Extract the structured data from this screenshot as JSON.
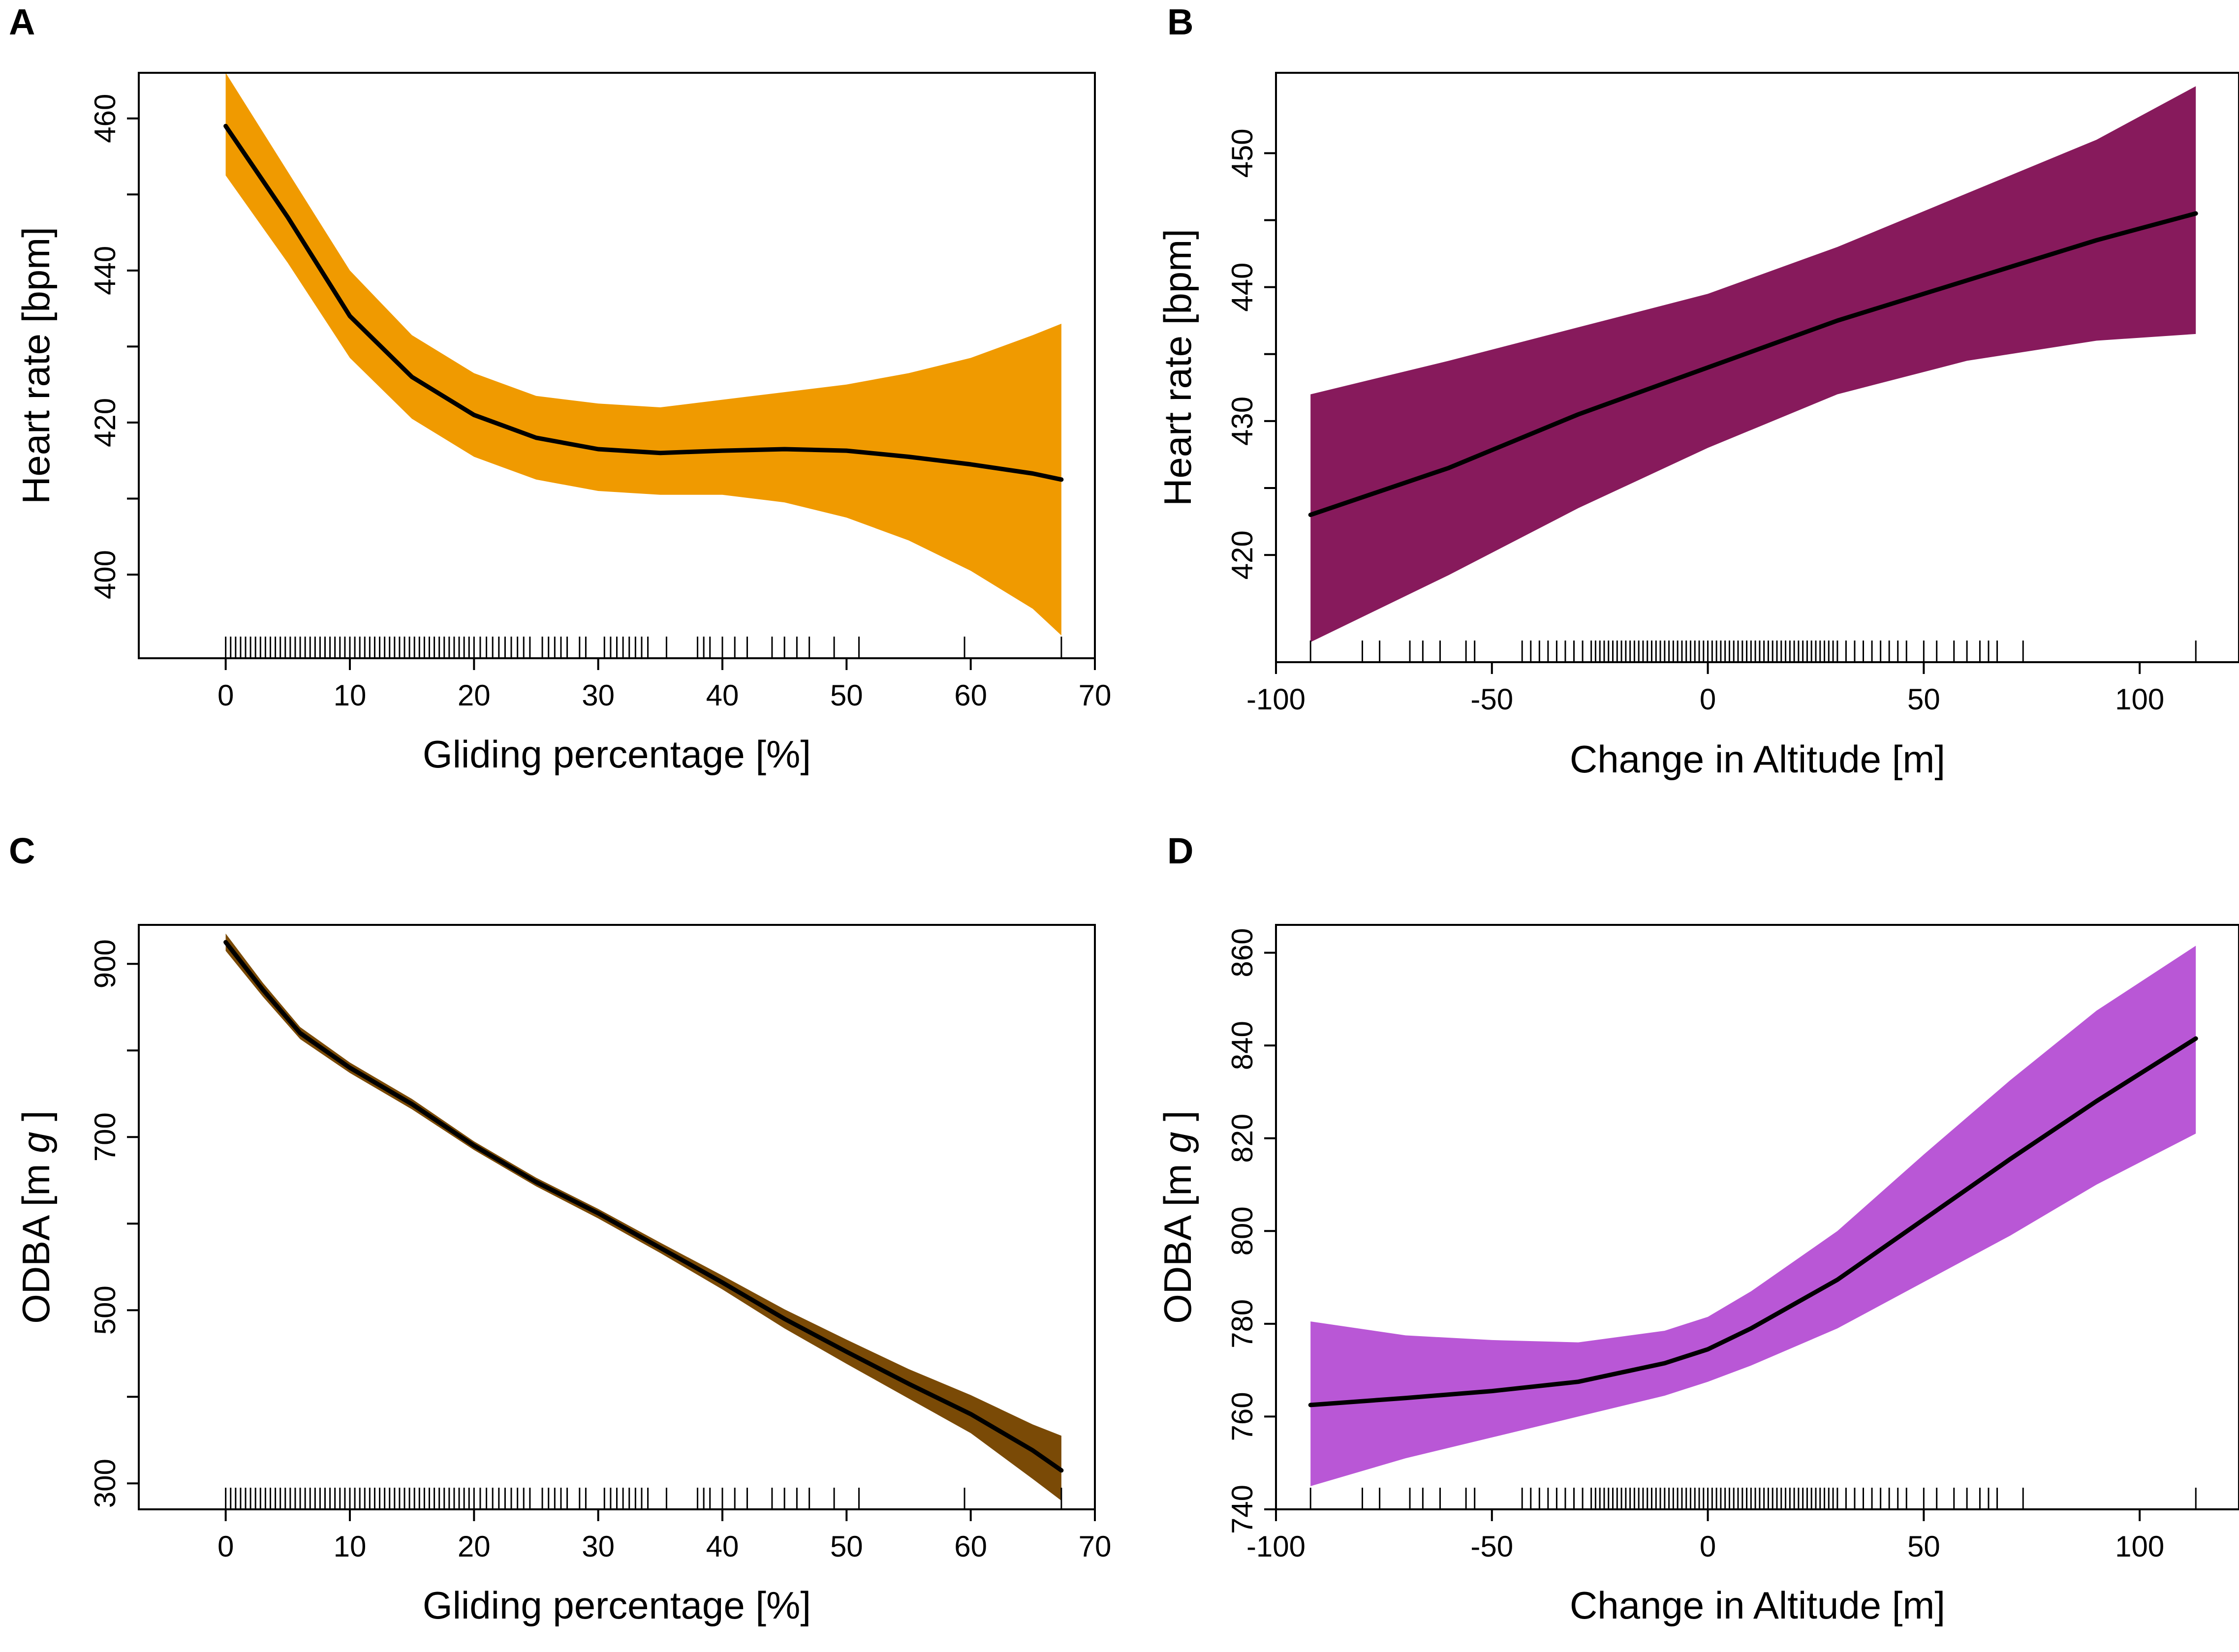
{
  "colors": {
    "panel_a_band": "#F09A00",
    "panel_b_band": "#871A5C",
    "panel_c_band": "#7A4A06",
    "panel_d_band": "#B957D6",
    "line": "#000000"
  },
  "chart_data": [
    {
      "panel": "A",
      "type": "line",
      "title": "",
      "xlabel": "Gliding percentage [%]",
      "ylabel": "Heart rate [bpm]",
      "xlim": [
        -7,
        70
      ],
      "ylim": [
        389,
        466
      ],
      "x_ticks": [
        0,
        10,
        20,
        30,
        40,
        50,
        60,
        70
      ],
      "x_tick_labels": [
        "0",
        "10",
        "20",
        "30",
        "40",
        "50",
        "60",
        "70"
      ],
      "y_ticks": [
        400,
        410,
        420,
        430,
        440,
        450,
        460
      ],
      "y_tick_labels": [
        "400",
        "",
        "420",
        "",
        "440",
        "",
        "460"
      ],
      "series": [
        {
          "name": "fit",
          "x": [
            0,
            5,
            10,
            15,
            20,
            25,
            30,
            35,
            40,
            45,
            50,
            55,
            60,
            65,
            67.3
          ],
          "y": [
            459,
            447,
            434,
            426,
            421,
            418,
            416.5,
            416,
            416.3,
            416.5,
            416.3,
            415.5,
            414.5,
            413.3,
            412.5
          ],
          "lower": [
            452.5,
            441,
            428.5,
            420.5,
            415.5,
            412.5,
            411,
            410.5,
            410.5,
            409.5,
            407.5,
            404.5,
            400.5,
            395.5,
            392
          ],
          "upper": [
            466,
            453,
            440,
            431.5,
            426.5,
            423.5,
            422.5,
            422,
            423,
            424,
            425,
            426.5,
            428.5,
            431.5,
            433
          ]
        }
      ],
      "rug": [
        0,
        0.4,
        0.8,
        1.2,
        1.6,
        2,
        2.4,
        2.8,
        3.2,
        3.6,
        4,
        4.4,
        4.8,
        5.2,
        5.6,
        6,
        6.4,
        6.8,
        7.2,
        7.6,
        8,
        8.4,
        8.8,
        9.2,
        9.6,
        10,
        10.4,
        10.8,
        11.2,
        11.6,
        12,
        12.4,
        12.8,
        13.2,
        13.6,
        14,
        14.4,
        14.8,
        15.2,
        15.6,
        16,
        16.4,
        16.8,
        17.2,
        17.6,
        18,
        18.4,
        18.8,
        19.2,
        19.6,
        20,
        20.5,
        21,
        21.5,
        22,
        22.5,
        23,
        23.5,
        24,
        24.5,
        25.5,
        26,
        26.5,
        27,
        27.5,
        28.5,
        29,
        30.5,
        31,
        31.5,
        32,
        32.5,
        33,
        33.5,
        34,
        35.5,
        38,
        38.5,
        39,
        40,
        41,
        42,
        44,
        45,
        46,
        47,
        49,
        51,
        59.5,
        67.3
      ]
    },
    {
      "panel": "B",
      "type": "line",
      "title": "",
      "xlabel": "Change in Altitude [m]",
      "ylabel": "Heart rate [bpm]",
      "xlim": [
        -100,
        123
      ],
      "ylim": [
        412,
        456
      ],
      "x_ticks": [
        -100,
        -50,
        0,
        50,
        100
      ],
      "x_tick_labels": [
        "-100",
        "-50",
        "0",
        "50",
        "100"
      ],
      "y_ticks": [
        420,
        425,
        430,
        435,
        440,
        445,
        450
      ],
      "y_tick_labels": [
        "420",
        "",
        "430",
        "",
        "440",
        "",
        "450"
      ],
      "series": [
        {
          "name": "fit",
          "x": [
            -92,
            -60,
            -30,
            0,
            30,
            60,
            90,
            113
          ],
          "y": [
            423,
            426.5,
            430.5,
            434,
            437.5,
            440.5,
            443.5,
            445.5
          ],
          "lower": [
            413.5,
            418.5,
            423.5,
            428,
            432,
            434.5,
            436,
            436.5
          ],
          "upper": [
            432,
            434.5,
            437,
            439.5,
            443,
            447,
            451,
            455
          ]
        }
      ],
      "rug": [
        -92,
        -80,
        -76,
        -69,
        -66,
        -62,
        -56,
        -54,
        -43,
        -41,
        -39,
        -37,
        -35,
        -33,
        -31,
        -29,
        -27,
        -26,
        -25,
        -24,
        -23,
        -22,
        -21,
        -20,
        -19,
        -18,
        -17,
        -16,
        -15,
        -14,
        -13,
        -12,
        -11,
        -10,
        -9,
        -8,
        -7,
        -6,
        -5,
        -4,
        -3,
        -2,
        -1,
        0,
        1,
        2,
        3,
        4,
        5,
        6,
        7,
        8,
        9,
        10,
        11,
        12,
        13,
        14,
        15,
        16,
        17,
        18,
        19,
        20,
        21,
        22,
        23,
        24,
        25,
        26,
        27,
        28,
        29,
        30,
        32,
        34,
        36,
        38,
        40,
        42,
        44,
        46,
        50,
        53,
        57,
        60,
        63,
        65,
        67,
        73,
        113
      ]
    },
    {
      "panel": "C",
      "type": "line",
      "title": "",
      "xlabel": "Gliding percentage [%]",
      "ylabel": "ODBA [m g ]",
      "xlim": [
        -7,
        70
      ],
      "ylim": [
        270,
        945
      ],
      "x_ticks": [
        0,
        10,
        20,
        30,
        40,
        50,
        60,
        70
      ],
      "x_tick_labels": [
        "0",
        "10",
        "20",
        "30",
        "40",
        "50",
        "60",
        "70"
      ],
      "y_ticks": [
        300,
        400,
        500,
        600,
        700,
        800,
        900
      ],
      "y_tick_labels": [
        "300",
        "",
        "500",
        "",
        "700",
        "",
        "900"
      ],
      "series": [
        {
          "name": "fit",
          "x": [
            0,
            3,
            6,
            10,
            15,
            20,
            25,
            30,
            35,
            40,
            45,
            50,
            55,
            60,
            65,
            67.3
          ],
          "y": [
            925,
            870,
            820,
            780,
            738,
            690,
            648,
            612,
            572,
            532,
            490,
            452,
            415,
            380,
            338,
            315
          ],
          "lower": [
            915,
            862,
            813,
            774,
            732,
            685,
            643,
            606,
            566,
            524,
            479,
            438,
            398,
            358,
            305,
            280
          ],
          "upper": [
            935,
            878,
            827,
            786,
            744,
            695,
            653,
            617,
            578,
            540,
            501,
            466,
            432,
            402,
            368,
            355
          ]
        }
      ],
      "rug": [
        0,
        0.4,
        0.8,
        1.2,
        1.6,
        2,
        2.4,
        2.8,
        3.2,
        3.6,
        4,
        4.4,
        4.8,
        5.2,
        5.6,
        6,
        6.4,
        6.8,
        7.2,
        7.6,
        8,
        8.4,
        8.8,
        9.2,
        9.6,
        10,
        10.4,
        10.8,
        11.2,
        11.6,
        12,
        12.4,
        12.8,
        13.2,
        13.6,
        14,
        14.4,
        14.8,
        15.2,
        15.6,
        16,
        16.4,
        16.8,
        17.2,
        17.6,
        18,
        18.4,
        18.8,
        19.2,
        19.6,
        20,
        20.5,
        21,
        21.5,
        22,
        22.5,
        23,
        23.5,
        24,
        24.5,
        25.5,
        26,
        26.5,
        27,
        27.5,
        28.5,
        29,
        30.5,
        31,
        31.5,
        32,
        32.5,
        33,
        33.5,
        34,
        35.5,
        38,
        38.5,
        39,
        40,
        41,
        42,
        44,
        45,
        46,
        47,
        49,
        51,
        59.5,
        67.3
      ]
    },
    {
      "panel": "D",
      "type": "line",
      "title": "",
      "xlabel": "Change in Altitude [m]",
      "ylabel": "ODBA [m g ]",
      "xlim": [
        -100,
        123
      ],
      "ylim": [
        740,
        866
      ],
      "x_ticks": [
        -100,
        -50,
        0,
        50,
        100
      ],
      "x_tick_labels": [
        "-100",
        "-50",
        "0",
        "50",
        "100"
      ],
      "y_ticks": [
        740,
        760,
        780,
        800,
        820,
        840,
        860
      ],
      "y_tick_labels": [
        "740",
        "760",
        "780",
        "800",
        "820",
        "840",
        "860"
      ],
      "series": [
        {
          "name": "fit",
          "x": [
            -92,
            -70,
            -50,
            -30,
            -10,
            0,
            10,
            30,
            50,
            70,
            90,
            113
          ],
          "y": [
            762.5,
            764,
            765.5,
            767.5,
            771.5,
            774.5,
            779,
            789.5,
            802.5,
            815.5,
            828,
            841.5
          ],
          "lower": [
            745,
            751,
            755.5,
            760,
            764.5,
            767.5,
            771,
            779,
            789,
            799,
            810,
            821
          ],
          "upper": [
            780.5,
            777.5,
            776.5,
            776,
            778.5,
            781.5,
            787,
            800,
            816.5,
            832.5,
            847.5,
            861.5
          ]
        }
      ],
      "rug": [
        -92,
        -80,
        -76,
        -69,
        -66,
        -62,
        -56,
        -54,
        -43,
        -41,
        -39,
        -37,
        -35,
        -33,
        -31,
        -29,
        -27,
        -26,
        -25,
        -24,
        -23,
        -22,
        -21,
        -20,
        -19,
        -18,
        -17,
        -16,
        -15,
        -14,
        -13,
        -12,
        -11,
        -10,
        -9,
        -8,
        -7,
        -6,
        -5,
        -4,
        -3,
        -2,
        -1,
        0,
        1,
        2,
        3,
        4,
        5,
        6,
        7,
        8,
        9,
        10,
        11,
        12,
        13,
        14,
        15,
        16,
        17,
        18,
        19,
        20,
        21,
        22,
        23,
        24,
        25,
        26,
        27,
        28,
        29,
        30,
        32,
        34,
        36,
        38,
        40,
        42,
        44,
        46,
        50,
        53,
        57,
        60,
        63,
        65,
        67,
        73,
        113
      ]
    }
  ]
}
